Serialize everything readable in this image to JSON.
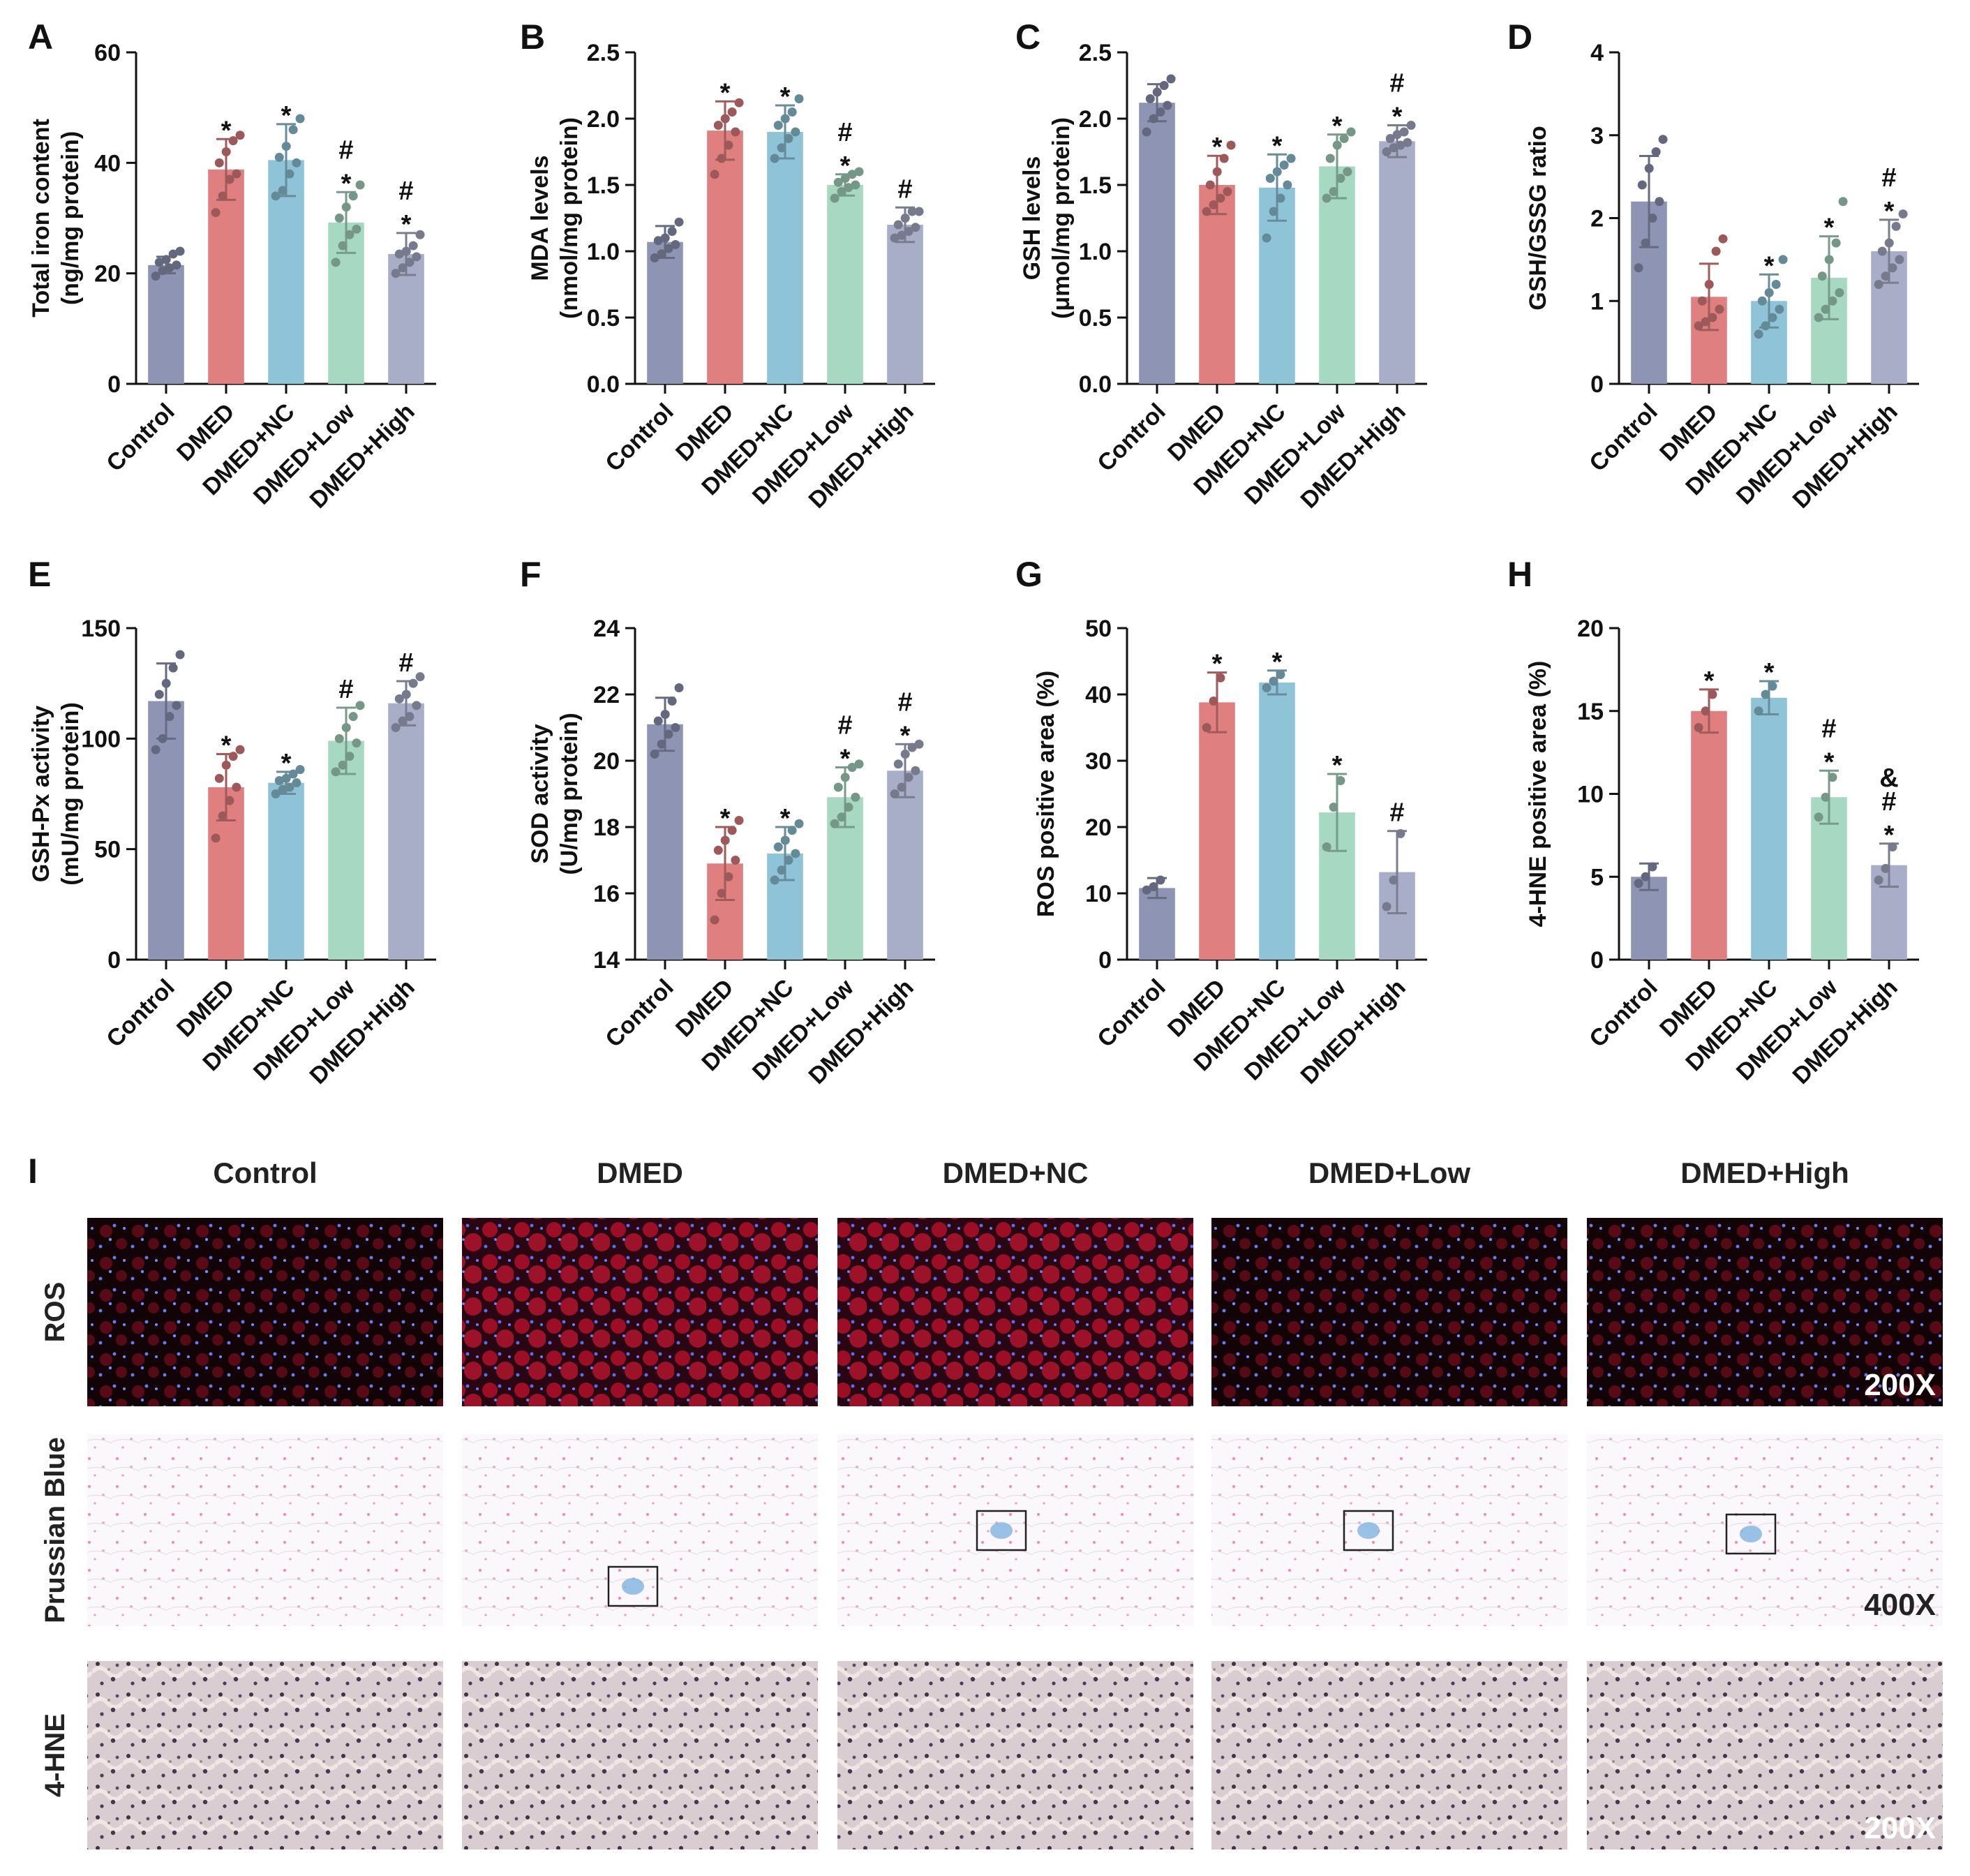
{
  "colors": {
    "Control": "#8e95b4",
    "DMED": "#e07f7f",
    "DMED+NC": "#8fc4d8",
    "DMED+Low": "#a6d8c2",
    "DMED+High": "#a9aec8"
  },
  "chart_data": [
    {
      "letter": "A",
      "type": "bar",
      "categories": [
        "Control",
        "DMED",
        "DMED+NC",
        "DMED+Low",
        "DMED+High"
      ],
      "values": [
        21.5,
        38.8,
        40.5,
        29.2,
        23.5
      ],
      "errors": [
        1.5,
        5.5,
        6.5,
        5.5,
        3.8
      ],
      "points": [
        [
          19.5,
          20.5,
          21,
          21.5,
          22,
          22.5,
          23.5,
          24
        ],
        [
          31,
          34,
          37,
          38,
          40,
          42,
          44,
          45
        ],
        [
          34,
          35,
          38,
          40,
          41,
          43,
          46,
          48
        ],
        [
          22,
          25,
          27,
          28,
          30,
          32,
          34,
          36
        ],
        [
          20,
          21,
          22,
          23,
          23.5,
          24,
          25,
          27
        ]
      ],
      "significance": [
        "",
        "*",
        "*",
        "#\n*",
        "#\n*"
      ],
      "ylabel": "Total iron content\n(ng/mg protein)",
      "ylim": [
        0,
        60
      ],
      "yticks": [
        "0",
        "20",
        "40",
        "60"
      ]
    },
    {
      "letter": "B",
      "type": "bar",
      "categories": [
        "Control",
        "DMED",
        "DMED+NC",
        "DMED+Low",
        "DMED+High"
      ],
      "values": [
        1.07,
        1.91,
        1.9,
        1.5,
        1.2
      ],
      "errors": [
        0.12,
        0.22,
        0.2,
        0.08,
        0.13
      ],
      "points": [
        [
          0.95,
          0.98,
          1.02,
          1.05,
          1.08,
          1.1,
          1.15,
          1.22
        ],
        [
          1.58,
          1.7,
          1.8,
          1.9,
          1.95,
          2.0,
          2.05,
          2.12
        ],
        [
          1.7,
          1.78,
          1.85,
          1.9,
          1.95,
          2.0,
          2.05,
          2.15
        ],
        [
          1.4,
          1.45,
          1.48,
          1.5,
          1.52,
          1.55,
          1.58,
          1.6
        ],
        [
          1.1,
          1.12,
          1.15,
          1.18,
          1.2,
          1.25,
          1.3,
          1.3
        ]
      ],
      "significance": [
        "",
        "*",
        "*",
        "#\n*",
        "#"
      ],
      "ylabel": "MDA levels\n(nmol/mg protein)",
      "ylim": [
        0,
        2.5
      ],
      "yticks": [
        "0.0",
        "0.5",
        "1.0",
        "1.5",
        "2.0",
        "2.5"
      ]
    },
    {
      "letter": "C",
      "type": "bar",
      "categories": [
        "Control",
        "DMED",
        "DMED+NC",
        "DMED+Low",
        "DMED+High"
      ],
      "values": [
        2.12,
        1.5,
        1.48,
        1.64,
        1.83
      ],
      "errors": [
        0.14,
        0.22,
        0.25,
        0.24,
        0.12
      ],
      "points": [
        [
          1.9,
          2.0,
          2.05,
          2.1,
          2.15,
          2.2,
          2.25,
          2.3
        ],
        [
          1.3,
          1.35,
          1.4,
          1.45,
          1.5,
          1.6,
          1.7,
          1.8
        ],
        [
          1.1,
          1.3,
          1.4,
          1.5,
          1.55,
          1.6,
          1.65,
          1.7
        ],
        [
          1.4,
          1.45,
          1.55,
          1.6,
          1.7,
          1.8,
          1.85,
          1.9
        ],
        [
          1.75,
          1.78,
          1.8,
          1.82,
          1.85,
          1.88,
          1.9,
          1.95
        ]
      ],
      "significance": [
        "",
        "*",
        "*",
        "*",
        "#\n*"
      ],
      "ylabel": "GSH levels\n(μmol/mg protein)",
      "ylim": [
        0,
        2.5
      ],
      "yticks": [
        "0.0",
        "0.5",
        "1.0",
        "1.5",
        "2.0",
        "2.5"
      ]
    },
    {
      "letter": "D",
      "type": "bar",
      "categories": [
        "Control",
        "DMED",
        "DMED+NC",
        "DMED+Low",
        "DMED+High"
      ],
      "values": [
        2.2,
        1.05,
        1.0,
        1.28,
        1.6
      ],
      "errors": [
        0.55,
        0.4,
        0.32,
        0.5,
        0.38
      ],
      "points": [
        [
          1.4,
          1.7,
          2.0,
          2.2,
          2.4,
          2.6,
          2.8,
          2.95
        ],
        [
          0.7,
          0.75,
          0.8,
          0.9,
          1.0,
          1.2,
          1.6,
          1.75
        ],
        [
          0.6,
          0.7,
          0.8,
          0.9,
          1.0,
          1.1,
          1.2,
          1.5
        ],
        [
          0.8,
          0.9,
          1.0,
          1.1,
          1.3,
          1.5,
          1.7,
          2.2
        ],
        [
          1.2,
          1.3,
          1.4,
          1.5,
          1.6,
          1.7,
          1.9,
          2.05
        ]
      ],
      "significance": [
        "",
        "",
        "*",
        "*",
        "#\n*"
      ],
      "ylabel": "GSH/GSSG ratio",
      "ylim": [
        0,
        4
      ],
      "yticks": [
        "0",
        "1",
        "2",
        "3",
        "4"
      ]
    },
    {
      "letter": "E",
      "type": "bar",
      "categories": [
        "Control",
        "DMED",
        "DMED+NC",
        "DMED+Low",
        "DMED+High"
      ],
      "values": [
        117,
        78,
        80,
        99,
        116
      ],
      "errors": [
        17,
        15,
        5,
        15,
        10
      ],
      "points": [
        [
          95,
          100,
          110,
          115,
          120,
          125,
          132,
          138
        ],
        [
          55,
          65,
          72,
          78,
          82,
          88,
          92,
          95
        ],
        [
          75,
          77,
          78,
          80,
          81,
          82,
          84,
          86
        ],
        [
          85,
          88,
          92,
          98,
          100,
          105,
          110,
          115
        ],
        [
          105,
          108,
          110,
          115,
          118,
          120,
          125,
          128
        ]
      ],
      "significance": [
        "",
        "*",
        "*",
        "#",
        "#"
      ],
      "ylabel": "GSH-Px activity\n(mU/mg protein)",
      "ylim": [
        0,
        150
      ],
      "yticks": [
        "0",
        "50",
        "100",
        "150"
      ]
    },
    {
      "letter": "F",
      "type": "bar",
      "categories": [
        "Control",
        "DMED",
        "DMED+NC",
        "DMED+Low",
        "DMED+High"
      ],
      "values": [
        21.1,
        16.9,
        17.2,
        18.9,
        19.7
      ],
      "errors": [
        0.8,
        1.1,
        0.8,
        0.9,
        0.8
      ],
      "points": [
        [
          20.2,
          20.5,
          20.8,
          21.0,
          21.2,
          21.4,
          21.8,
          22.2
        ],
        [
          15.2,
          16.0,
          16.5,
          17.0,
          17.3,
          17.6,
          17.9,
          18.2
        ],
        [
          16.4,
          16.7,
          17.0,
          17.2,
          17.4,
          17.6,
          17.9,
          18.1
        ],
        [
          18.1,
          18.3,
          18.6,
          18.9,
          19.2,
          19.5,
          19.8,
          19.9
        ],
        [
          19.0,
          19.2,
          19.5,
          19.7,
          19.9,
          20.2,
          20.4,
          20.5
        ]
      ],
      "significance": [
        "",
        "*",
        "*",
        "#\n*",
        "#\n*"
      ],
      "ylabel": "SOD activity\n(U/mg protein)",
      "ylim": [
        14,
        24
      ],
      "yticks": [
        "14",
        "16",
        "18",
        "20",
        "22",
        "24"
      ]
    },
    {
      "letter": "G",
      "type": "bar",
      "categories": [
        "Control",
        "DMED",
        "DMED+NC",
        "DMED+Low",
        "DMED+High"
      ],
      "values": [
        10.8,
        38.8,
        41.8,
        22.2,
        13.2
      ],
      "errors": [
        1.5,
        4.5,
        1.8,
        5.8,
        6.2
      ],
      "points": [
        [
          10.5,
          11,
          12
        ],
        [
          35,
          39,
          42.5
        ],
        [
          41,
          42,
          43
        ],
        [
          17,
          23,
          27
        ],
        [
          8,
          12,
          19
        ]
      ],
      "significance": [
        "",
        "*",
        "*",
        "*",
        "#"
      ],
      "ylabel": "ROS positive area (%)",
      "ylim": [
        0,
        50
      ],
      "yticks": [
        "0",
        "10",
        "20",
        "30",
        "40",
        "50"
      ]
    },
    {
      "letter": "H",
      "type": "bar",
      "categories": [
        "Control",
        "DMED",
        "DMED+NC",
        "DMED+Low",
        "DMED+High"
      ],
      "values": [
        5.0,
        15.0,
        15.8,
        9.8,
        5.7
      ],
      "errors": [
        0.8,
        1.3,
        1.0,
        1.6,
        1.3
      ],
      "points": [
        [
          4.6,
          5,
          5.6
        ],
        [
          14,
          15,
          16
        ],
        [
          15,
          16,
          16.5
        ],
        [
          8.6,
          9.8,
          11
        ],
        [
          4.8,
          5.5,
          6.8
        ]
      ],
      "significance": [
        "",
        "*",
        "*",
        "#\n*",
        "&\n#\n*"
      ],
      "ylabel": "4-HNE positive area (%)",
      "ylim": [
        0,
        20
      ],
      "yticks": [
        "0",
        "5",
        "10",
        "15",
        "20"
      ]
    }
  ],
  "micrographs": {
    "letter": "I",
    "columns": [
      "Control",
      "DMED",
      "DMED+NC",
      "DMED+Low",
      "DMED+High"
    ],
    "rows": [
      {
        "label": "ROS",
        "magnification": "200X"
      },
      {
        "label": "Prussian Blue",
        "magnification": "400X"
      },
      {
        "label": "4-HNE",
        "magnification": "200X"
      }
    ]
  }
}
